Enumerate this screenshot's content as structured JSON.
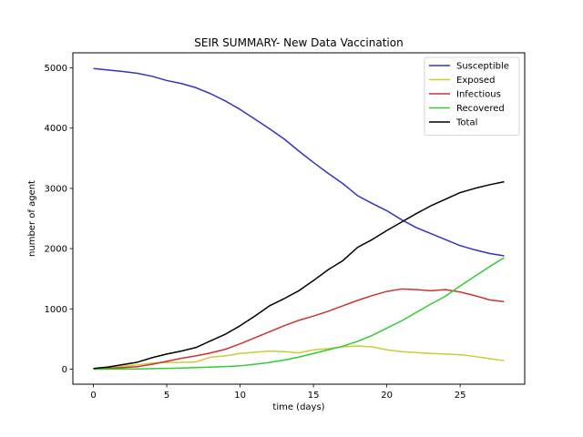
{
  "chart_data": {
    "type": "line",
    "title": "SEIR SUMMARY- New Data Vaccination",
    "xlabel": "time (days)",
    "ylabel": "number of agent",
    "xlim": [
      -1.4,
      29.4
    ],
    "ylim": [
      -250,
      5250
    ],
    "xticks": [
      0,
      5,
      10,
      15,
      20,
      25
    ],
    "yticks": [
      0,
      1000,
      2000,
      3000,
      4000,
      5000
    ],
    "grid": false,
    "legend_position": "top-right",
    "series": [
      {
        "name": "Susceptible",
        "color": "#3333cc",
        "x": [
          0,
          1,
          2,
          3,
          4,
          5,
          6,
          7,
          8,
          9,
          10,
          11,
          12,
          13,
          14,
          15,
          16,
          17,
          18,
          19,
          20,
          21,
          22,
          23,
          24,
          25,
          26,
          27,
          28
        ],
        "y": [
          4990,
          4965,
          4940,
          4910,
          4860,
          4790,
          4740,
          4670,
          4570,
          4450,
          4310,
          4150,
          3990,
          3820,
          3620,
          3430,
          3250,
          3080,
          2880,
          2750,
          2630,
          2480,
          2350,
          2250,
          2150,
          2050,
          1980,
          1920,
          1880
        ]
      },
      {
        "name": "Exposed",
        "color": "#cccc33",
        "x": [
          0,
          1,
          2,
          3,
          4,
          5,
          6,
          7,
          8,
          9,
          10,
          11,
          12,
          13,
          14,
          15,
          16,
          17,
          18,
          19,
          20,
          21,
          22,
          23,
          24,
          25,
          26,
          27,
          28
        ],
        "y": [
          5,
          20,
          50,
          70,
          100,
          110,
          110,
          120,
          200,
          220,
          260,
          280,
          300,
          290,
          270,
          320,
          340,
          370,
          385,
          370,
          320,
          290,
          275,
          260,
          250,
          240,
          210,
          175,
          140
        ]
      },
      {
        "name": "Infectious",
        "color": "#cc3333",
        "x": [
          0,
          1,
          2,
          3,
          4,
          5,
          6,
          7,
          8,
          9,
          10,
          11,
          12,
          13,
          14,
          15,
          16,
          17,
          18,
          19,
          20,
          21,
          22,
          23,
          24,
          25,
          26,
          27,
          28
        ],
        "y": [
          5,
          15,
          25,
          40,
          80,
          130,
          180,
          220,
          270,
          330,
          420,
          520,
          620,
          720,
          810,
          880,
          960,
          1050,
          1140,
          1220,
          1290,
          1330,
          1320,
          1300,
          1320,
          1280,
          1220,
          1150,
          1120
        ]
      },
      {
        "name": "Recovered",
        "color": "#33cc33",
        "x": [
          0,
          1,
          2,
          3,
          4,
          5,
          6,
          7,
          8,
          9,
          10,
          11,
          12,
          13,
          14,
          15,
          16,
          17,
          18,
          19,
          20,
          21,
          22,
          23,
          24,
          25,
          26,
          27,
          28
        ],
        "y": [
          0,
          0,
          2,
          4,
          8,
          12,
          18,
          25,
          33,
          42,
          55,
          80,
          110,
          150,
          200,
          260,
          320,
          380,
          460,
          560,
          680,
          800,
          940,
          1080,
          1210,
          1380,
          1540,
          1700,
          1850
        ]
      },
      {
        "name": "Total",
        "color": "#000000",
        "x": [
          0,
          1,
          2,
          3,
          4,
          5,
          6,
          7,
          8,
          9,
          10,
          11,
          12,
          13,
          14,
          15,
          16,
          17,
          18,
          19,
          20,
          21,
          22,
          23,
          24,
          25,
          26,
          27,
          28
        ],
        "y": [
          10,
          35,
          75,
          115,
          190,
          250,
          300,
          360,
          470,
          580,
          720,
          880,
          1050,
          1170,
          1300,
          1470,
          1650,
          1800,
          2020,
          2150,
          2300,
          2440,
          2580,
          2710,
          2820,
          2930,
          3000,
          3060,
          3110
        ]
      }
    ]
  }
}
